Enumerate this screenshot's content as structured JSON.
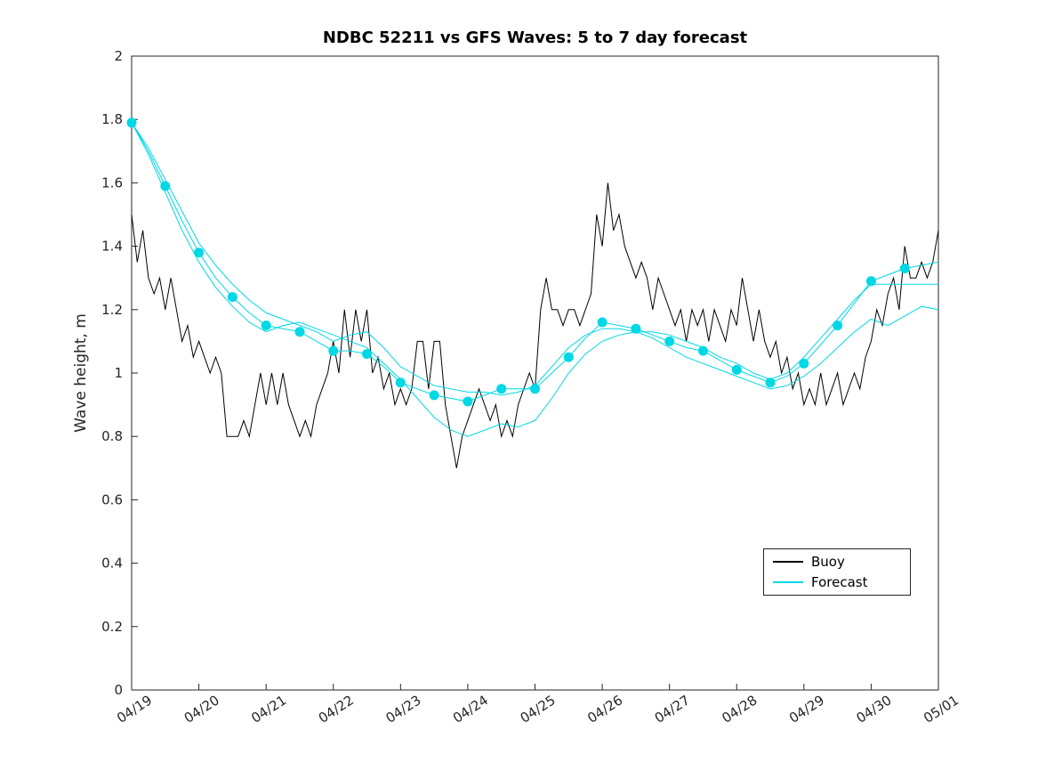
{
  "chart_data": {
    "type": "line",
    "title": "NDBC 52211 vs GFS Waves: 5 to 7 day forecast",
    "xlabel": "",
    "ylabel": "Wave height, m",
    "ylim": [
      0,
      2
    ],
    "x_range_days": [
      0,
      12
    ],
    "grid": false,
    "x_tick_labels": [
      "04/19",
      "04/20",
      "04/21",
      "04/22",
      "04/23",
      "04/24",
      "04/25",
      "04/26",
      "04/27",
      "04/28",
      "04/29",
      "04/30",
      "05/01"
    ],
    "x_tick_rotation_deg": 33,
    "y_ticks": [
      0,
      0.2,
      0.4,
      0.6,
      0.8,
      1,
      1.2,
      1.4,
      1.6,
      1.8,
      2
    ],
    "y_tick_labels": [
      "0",
      "0.2",
      "0.4",
      "0.6",
      "0.8",
      "1",
      "1.2",
      "1.4",
      "1.6",
      "1.8",
      "2"
    ],
    "legend": {
      "position": "lower-right-inside",
      "entries": [
        {
          "label": "Buoy",
          "color": "#000000"
        },
        {
          "label": "Forecast",
          "color": "#00d8e6"
        }
      ]
    },
    "series": [
      {
        "name": "Buoy",
        "role": "buoy",
        "color": "#000000",
        "line_width": 1,
        "x_start": 0,
        "x_step": 0.0833333,
        "values": [
          1.5,
          1.35,
          1.45,
          1.3,
          1.25,
          1.3,
          1.2,
          1.3,
          1.2,
          1.1,
          1.15,
          1.05,
          1.1,
          1.05,
          1.0,
          1.05,
          1.0,
          0.8,
          0.8,
          0.8,
          0.85,
          0.8,
          0.9,
          1.0,
          0.9,
          1.0,
          0.9,
          1.0,
          0.9,
          0.85,
          0.8,
          0.85,
          0.8,
          0.9,
          0.95,
          1.0,
          1.1,
          1.0,
          1.2,
          1.05,
          1.2,
          1.1,
          1.2,
          1.0,
          1.05,
          0.95,
          1.0,
          0.9,
          0.95,
          0.9,
          0.95,
          1.1,
          1.1,
          0.95,
          1.1,
          1.1,
          0.9,
          0.8,
          0.7,
          0.8,
          0.85,
          0.9,
          0.95,
          0.9,
          0.85,
          0.9,
          0.8,
          0.85,
          0.8,
          0.9,
          0.95,
          1.0,
          0.95,
          1.2,
          1.3,
          1.2,
          1.2,
          1.15,
          1.2,
          1.2,
          1.15,
          1.2,
          1.25,
          1.5,
          1.4,
          1.6,
          1.45,
          1.5,
          1.4,
          1.35,
          1.3,
          1.35,
          1.3,
          1.2,
          1.3,
          1.25,
          1.2,
          1.15,
          1.2,
          1.1,
          1.2,
          1.15,
          1.2,
          1.1,
          1.2,
          1.15,
          1.1,
          1.2,
          1.15,
          1.3,
          1.2,
          1.1,
          1.2,
          1.1,
          1.05,
          1.1,
          1.0,
          1.05,
          0.95,
          1.0,
          0.9,
          0.95,
          0.9,
          1.0,
          0.9,
          0.95,
          1.0,
          0.9,
          0.95,
          1.0,
          0.95,
          1.05,
          1.1,
          1.2,
          1.15,
          1.25,
          1.3,
          1.2,
          1.4,
          1.3,
          1.3,
          1.35,
          1.3,
          1.35,
          1.45
        ]
      },
      {
        "name": "Forecast run 1",
        "role": "forecast",
        "color": "#00d8e6",
        "line_width": 1,
        "x_start": 0,
        "x_step": 0.25,
        "values": [
          1.79,
          1.7,
          1.59,
          1.48,
          1.38,
          1.3,
          1.24,
          1.19,
          1.15,
          1.14,
          1.13,
          1.1,
          1.07,
          1.07,
          1.06,
          1.02,
          0.97,
          0.95,
          0.93,
          0.92,
          0.91,
          0.93,
          0.95,
          0.95,
          0.95,
          1.0,
          1.05,
          1.11,
          1.16,
          1.15,
          1.14,
          1.12,
          1.1,
          1.08,
          1.07,
          1.04,
          1.01,
          0.99,
          0.97,
          0.99,
          1.03,
          1.09,
          1.15,
          1.22,
          1.29,
          1.31,
          1.33,
          1.34,
          1.35
        ]
      },
      {
        "name": "Forecast run 2",
        "role": "forecast",
        "color": "#00d8e6",
        "line_width": 1,
        "x_start": 0,
        "x_step": 0.25,
        "values": [
          1.79,
          1.69,
          1.57,
          1.45,
          1.35,
          1.27,
          1.21,
          1.16,
          1.13,
          1.15,
          1.16,
          1.14,
          1.12,
          1.1,
          1.08,
          1.03,
          0.98,
          0.92,
          0.86,
          0.82,
          0.8,
          0.82,
          0.84,
          0.83,
          0.85,
          0.92,
          1.0,
          1.06,
          1.1,
          1.12,
          1.13,
          1.11,
          1.08,
          1.05,
          1.03,
          1.01,
          0.99,
          0.97,
          0.95,
          0.96,
          0.99,
          1.03,
          1.08,
          1.13,
          1.17,
          1.15,
          1.18,
          1.21,
          1.2
        ]
      },
      {
        "name": "Forecast run 3",
        "role": "forecast",
        "color": "#00d8e6",
        "line_width": 1,
        "x_start": 0,
        "x_step": 0.25,
        "values": [
          1.79,
          1.71,
          1.61,
          1.51,
          1.41,
          1.34,
          1.28,
          1.23,
          1.19,
          1.17,
          1.15,
          1.13,
          1.1,
          1.12,
          1.13,
          1.08,
          1.02,
          0.99,
          0.96,
          0.95,
          0.94,
          0.94,
          0.93,
          0.94,
          0.96,
          1.02,
          1.08,
          1.12,
          1.14,
          1.14,
          1.13,
          1.13,
          1.12,
          1.1,
          1.08,
          1.05,
          1.03,
          1.0,
          0.98,
          1.0,
          1.05,
          1.11,
          1.17,
          1.23,
          1.28,
          1.28,
          1.28,
          1.28,
          1.28
        ]
      },
      {
        "name": "Forecast markers",
        "role": "markers",
        "color": "#00d8e6",
        "marker_radius": 5.5,
        "x_start": 0,
        "x_step": 0.5,
        "values": [
          1.79,
          1.59,
          1.38,
          1.24,
          1.15,
          1.13,
          1.07,
          1.06,
          0.97,
          0.93,
          0.91,
          0.95,
          0.95,
          1.05,
          1.16,
          1.14,
          1.1,
          1.07,
          1.01,
          0.97,
          1.03,
          1.15,
          1.29,
          1.33
        ]
      }
    ]
  }
}
